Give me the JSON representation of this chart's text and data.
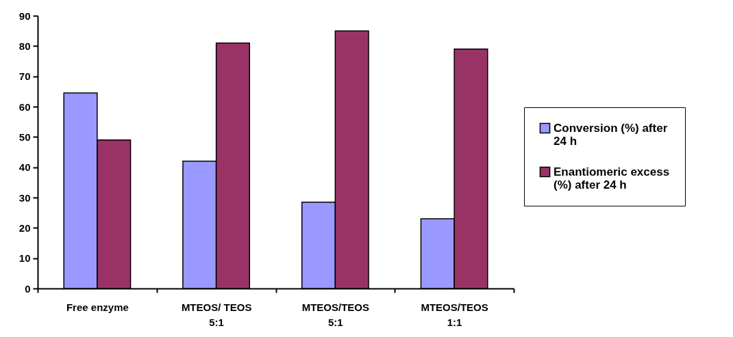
{
  "chart_data": {
    "type": "bar",
    "categories": [
      "Free enzyme",
      "MTEOS/ TEOS 5:1",
      "MTEOS/TEOS 5:1",
      "MTEOS/TEOS 1:1"
    ],
    "series": [
      {
        "name": "Conversion (%) after 24 h",
        "color": "#9999ff",
        "values": [
          64.5,
          42,
          28.5,
          23
        ]
      },
      {
        "name": "Enantiomeric excess (%) after 24 h",
        "color": "#993366",
        "values": [
          49,
          81,
          85,
          79
        ]
      }
    ],
    "ylim": [
      0,
      90
    ],
    "yticks": [
      0,
      10,
      20,
      30,
      40,
      50,
      60,
      70,
      80,
      90
    ],
    "legend": "right"
  }
}
